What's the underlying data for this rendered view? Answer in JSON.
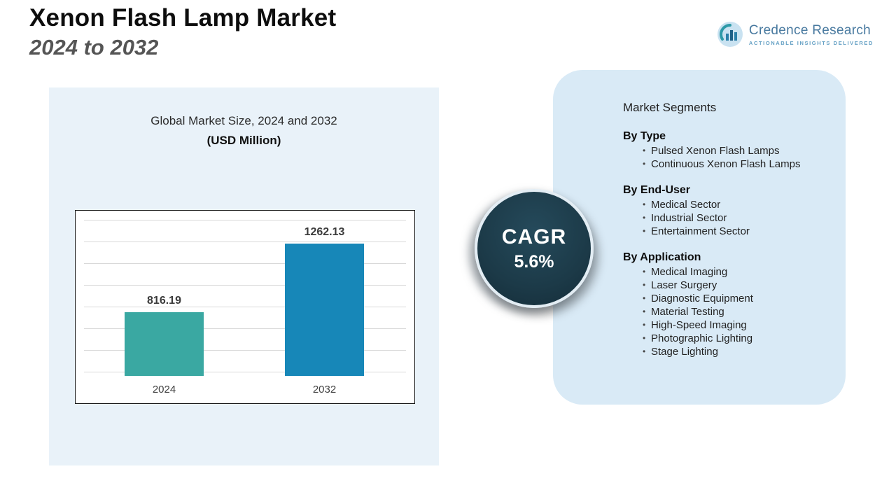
{
  "header": {
    "title_line1": "Xenon Flash Lamp Market",
    "title_line2": "2024 to 2032"
  },
  "logo": {
    "name": "Credence Research",
    "tagline": "ACTIONABLE INSIGHTS DELIVERED"
  },
  "chart_panel": {
    "title": "Global Market Size, 2024 and 2032",
    "subtitle": "(USD Million)"
  },
  "chart_data": {
    "type": "bar",
    "title": "Global Market Size, 2024 and 2032",
    "ylabel": "USD Million",
    "categories": [
      "2024",
      "2032"
    ],
    "values": [
      816.19,
      1262.13
    ],
    "value_labels": [
      "816.19",
      "1262.13"
    ],
    "colors": [
      "#3aa8a2",
      "#1787b8"
    ],
    "ylim": [
      400,
      1400
    ],
    "grid": true,
    "legend": "none"
  },
  "cagr": {
    "label": "CAGR",
    "value": "5.6%"
  },
  "segments": {
    "title": "Market Segments",
    "groups": [
      {
        "heading": "By Type",
        "items": [
          "Pulsed Xenon Flash Lamps",
          "Continuous Xenon Flash Lamps"
        ]
      },
      {
        "heading": "By End-User",
        "items": [
          "Medical Sector",
          "Industrial Sector",
          "Entertainment Sector"
        ]
      },
      {
        "heading": "By Application",
        "items": [
          "Medical Imaging",
          "Laser Surgery",
          "Diagnostic Equipment",
          "Material Testing",
          "High-Speed Imaging",
          "Photographic Lighting",
          "Stage Lighting"
        ]
      }
    ]
  },
  "colors": {
    "bar_2024": "#3aa8a2",
    "bar_2032": "#1787b8",
    "cagr_circle": "#1c3a48",
    "left_panel_bg": "#e9f2f9",
    "right_panel_bg": "#d9eaf6"
  }
}
